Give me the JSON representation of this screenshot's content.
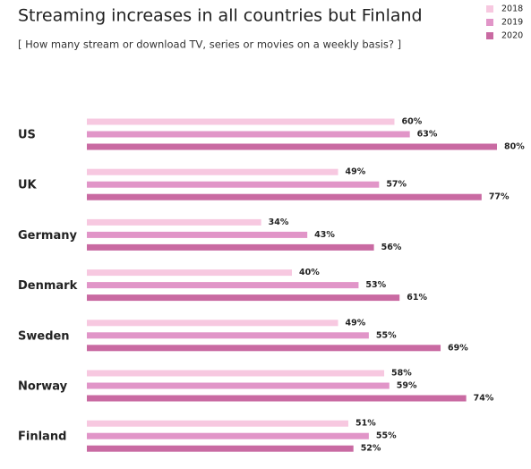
{
  "chart_data": {
    "type": "bar",
    "orientation": "horizontal",
    "title": "Streaming increases in all countries but Finland",
    "subtitle": "[ How many stream or download TV, series or movies on a weekly basis? ]",
    "categories": [
      "US",
      "UK",
      "Germany",
      "Denmark",
      "Sweden",
      "Norway",
      "Finland"
    ],
    "series": [
      {
        "name": "2018",
        "color": "#f7c8e0",
        "values": [
          60,
          49,
          34,
          40,
          49,
          58,
          51
        ],
        "value_labels": [
          "60%",
          "49%",
          "34%",
          "40%",
          "49%",
          "58%",
          "51%"
        ]
      },
      {
        "name": "2019",
        "color": "#e195c8",
        "values": [
          63,
          57,
          43,
          53,
          55,
          59,
          55
        ],
        "value_labels": [
          "63%",
          "57%",
          "43%",
          "53%",
          "55%",
          "59%",
          "55%"
        ]
      },
      {
        "name": "2020",
        "color": "#c96aa2",
        "values": [
          80,
          77,
          56,
          61,
          69,
          74,
          52
        ],
        "value_labels": [
          "80%",
          "77%",
          "56%",
          "61%",
          "69%",
          "74%",
          "52%"
        ]
      }
    ],
    "legend": "top-right"
  }
}
